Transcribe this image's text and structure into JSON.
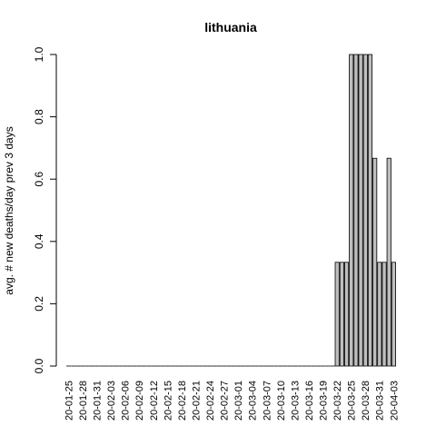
{
  "chart_data": {
    "type": "bar",
    "title": "lithuania",
    "xlabel": "",
    "ylabel": "avg. # new deaths/day prev  3  days",
    "ylim": [
      0,
      1.0
    ],
    "yticks": [
      "0.0",
      "0.2",
      "0.4",
      "0.6",
      "0.8",
      "1.0"
    ],
    "bar_fill": "#bebebe",
    "bar_stroke": "#000000",
    "categories": [
      "20-01-25",
      "20-01-26",
      "20-01-27",
      "20-01-28",
      "20-01-29",
      "20-01-30",
      "20-01-31",
      "20-02-01",
      "20-02-02",
      "20-02-03",
      "20-02-04",
      "20-02-05",
      "20-02-06",
      "20-02-07",
      "20-02-08",
      "20-02-09",
      "20-02-10",
      "20-02-11",
      "20-02-12",
      "20-02-13",
      "20-02-14",
      "20-02-15",
      "20-02-16",
      "20-02-17",
      "20-02-18",
      "20-02-19",
      "20-02-20",
      "20-02-21",
      "20-02-22",
      "20-02-23",
      "20-02-24",
      "20-02-25",
      "20-02-26",
      "20-02-27",
      "20-02-28",
      "20-02-29",
      "20-03-01",
      "20-03-02",
      "20-03-03",
      "20-03-04",
      "20-03-05",
      "20-03-06",
      "20-03-07",
      "20-03-08",
      "20-03-09",
      "20-03-10",
      "20-03-11",
      "20-03-12",
      "20-03-13",
      "20-03-14",
      "20-03-15",
      "20-03-16",
      "20-03-17",
      "20-03-18",
      "20-03-19",
      "20-03-20",
      "20-03-21",
      "20-03-22",
      "20-03-23",
      "20-03-24",
      "20-03-25",
      "20-03-26",
      "20-03-27",
      "20-03-28",
      "20-03-29",
      "20-03-30",
      "20-03-31",
      "20-04-01",
      "20-04-02",
      "20-04-03"
    ],
    "values": [
      0,
      0,
      0,
      0,
      0,
      0,
      0,
      0,
      0,
      0,
      0,
      0,
      0,
      0,
      0,
      0,
      0,
      0,
      0,
      0,
      0,
      0,
      0,
      0,
      0,
      0,
      0,
      0,
      0,
      0,
      0,
      0,
      0,
      0,
      0,
      0,
      0,
      0,
      0,
      0,
      0,
      0,
      0,
      0,
      0,
      0,
      0,
      0,
      0,
      0,
      0,
      0,
      0,
      0,
      0,
      0,
      0,
      0.333,
      0.333,
      0.333,
      1.0,
      1.0,
      1.0,
      1.0,
      1.0,
      0.667,
      0.333,
      0.333,
      0.667,
      0.333
    ],
    "shown_tick_labels": [
      "20-01-25",
      "20-01-28",
      "20-01-31",
      "20-02-03",
      "20-02-06",
      "20-02-09",
      "20-02-12",
      "20-02-15",
      "20-02-18",
      "20-02-21",
      "20-02-24",
      "20-02-27",
      "20-03-01",
      "20-03-04",
      "20-03-07",
      "20-03-10",
      "20-03-13",
      "20-03-16",
      "20-03-19",
      "20-03-22",
      "20-03-25",
      "20-03-28",
      "20-03-31",
      "20-04-03"
    ]
  }
}
